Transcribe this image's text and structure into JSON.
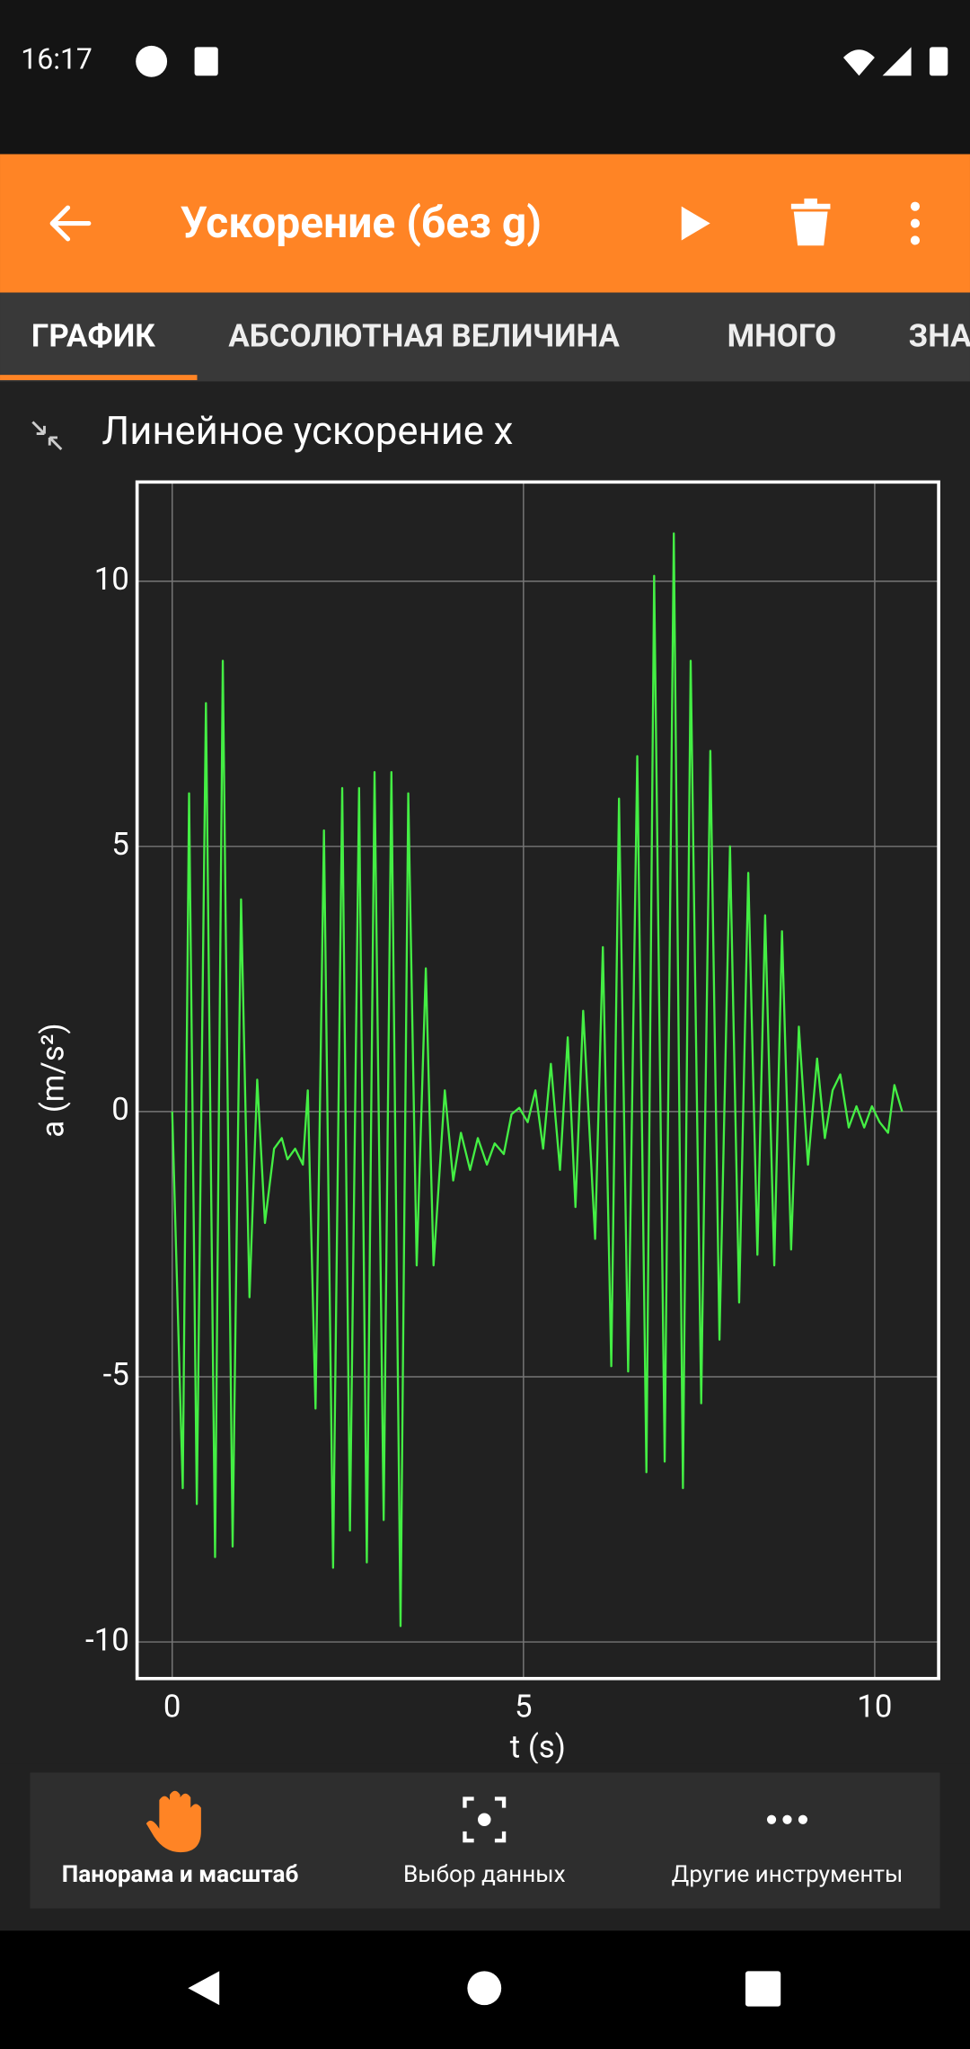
{
  "status": {
    "time": "16:17"
  },
  "toolbar": {
    "title": "Ускорение (без g)"
  },
  "tabs": [
    "ГРАФИК",
    "АБСОЛЮТНАЯ ВЕЛИЧИНА",
    "МНОГО",
    "ЗНА"
  ],
  "section_title": "Линейное ускорение x",
  "chart_data": {
    "type": "line",
    "x_label": "t (s)",
    "y_label": "a (m/s²)",
    "color": "#44ee44",
    "grid": true,
    "xlim": [
      -0.5,
      10.91
    ],
    "ylim": [
      -10.69,
      11.87
    ],
    "xticks": [
      0,
      5,
      10
    ],
    "yticks": [
      -10,
      -5,
      0,
      5,
      10
    ],
    "x": [
      0,
      0.15,
      0.24,
      0.35,
      0.48,
      0.61,
      0.72,
      0.86,
      0.98,
      1.1,
      1.21,
      1.32,
      1.45,
      1.56,
      1.64,
      1.75,
      1.86,
      1.93,
      2.04,
      2.16,
      2.29,
      2.42,
      2.53,
      2.66,
      2.77,
      2.88,
      3.01,
      3.12,
      3.25,
      3.36,
      3.48,
      3.61,
      3.72,
      3.88,
      4.0,
      4.11,
      4.24,
      4.35,
      4.48,
      4.59,
      4.72,
      4.83,
      4.94,
      5.06,
      5.17,
      5.28,
      5.39,
      5.52,
      5.63,
      5.74,
      5.85,
      6.02,
      6.13,
      6.25,
      6.36,
      6.49,
      6.62,
      6.75,
      6.86,
      7.01,
      7.14,
      7.27,
      7.38,
      7.53,
      7.66,
      7.79,
      7.94,
      8.07,
      8.2,
      8.33,
      8.44,
      8.57,
      8.68,
      8.81,
      8.92,
      9.05,
      9.18,
      9.29,
      9.4,
      9.51,
      9.63,
      9.74,
      9.85,
      9.96,
      10.07,
      10.19,
      10.28,
      10.39
    ],
    "values": [
      0,
      -7.1,
      6.0,
      -7.4,
      7.7,
      -8.4,
      8.5,
      -8.2,
      4.0,
      -3.5,
      0.6,
      -2.1,
      -0.7,
      -0.5,
      -0.9,
      -0.7,
      -1.0,
      0.4,
      -5.6,
      5.3,
      -8.6,
      6.1,
      -7.9,
      6.1,
      -8.5,
      6.4,
      -7.7,
      6.4,
      -9.7,
      6.0,
      -2.9,
      2.7,
      -2.9,
      0.4,
      -1.3,
      -0.4,
      -1.1,
      -0.5,
      -1.0,
      -0.6,
      -0.8,
      -0.05,
      0.07,
      -0.2,
      0.4,
      -0.7,
      0.9,
      -1.1,
      1.4,
      -1.8,
      1.9,
      -2.4,
      3.1,
      -4.8,
      5.9,
      -4.9,
      6.7,
      -6.8,
      10.1,
      -6.6,
      10.9,
      -7.1,
      8.5,
      -5.5,
      6.8,
      -4.3,
      5.0,
      -3.6,
      4.5,
      -2.7,
      3.7,
      -2.9,
      3.4,
      -2.6,
      1.6,
      -1.0,
      1.0,
      -0.5,
      0.4,
      0.7,
      -0.3,
      0.1,
      -0.3,
      0.1,
      -0.2,
      -0.4,
      0.5,
      0.0
    ]
  },
  "tools": [
    "Панорама и масштаб",
    "Выбор данных",
    "Другие инструменты"
  ]
}
